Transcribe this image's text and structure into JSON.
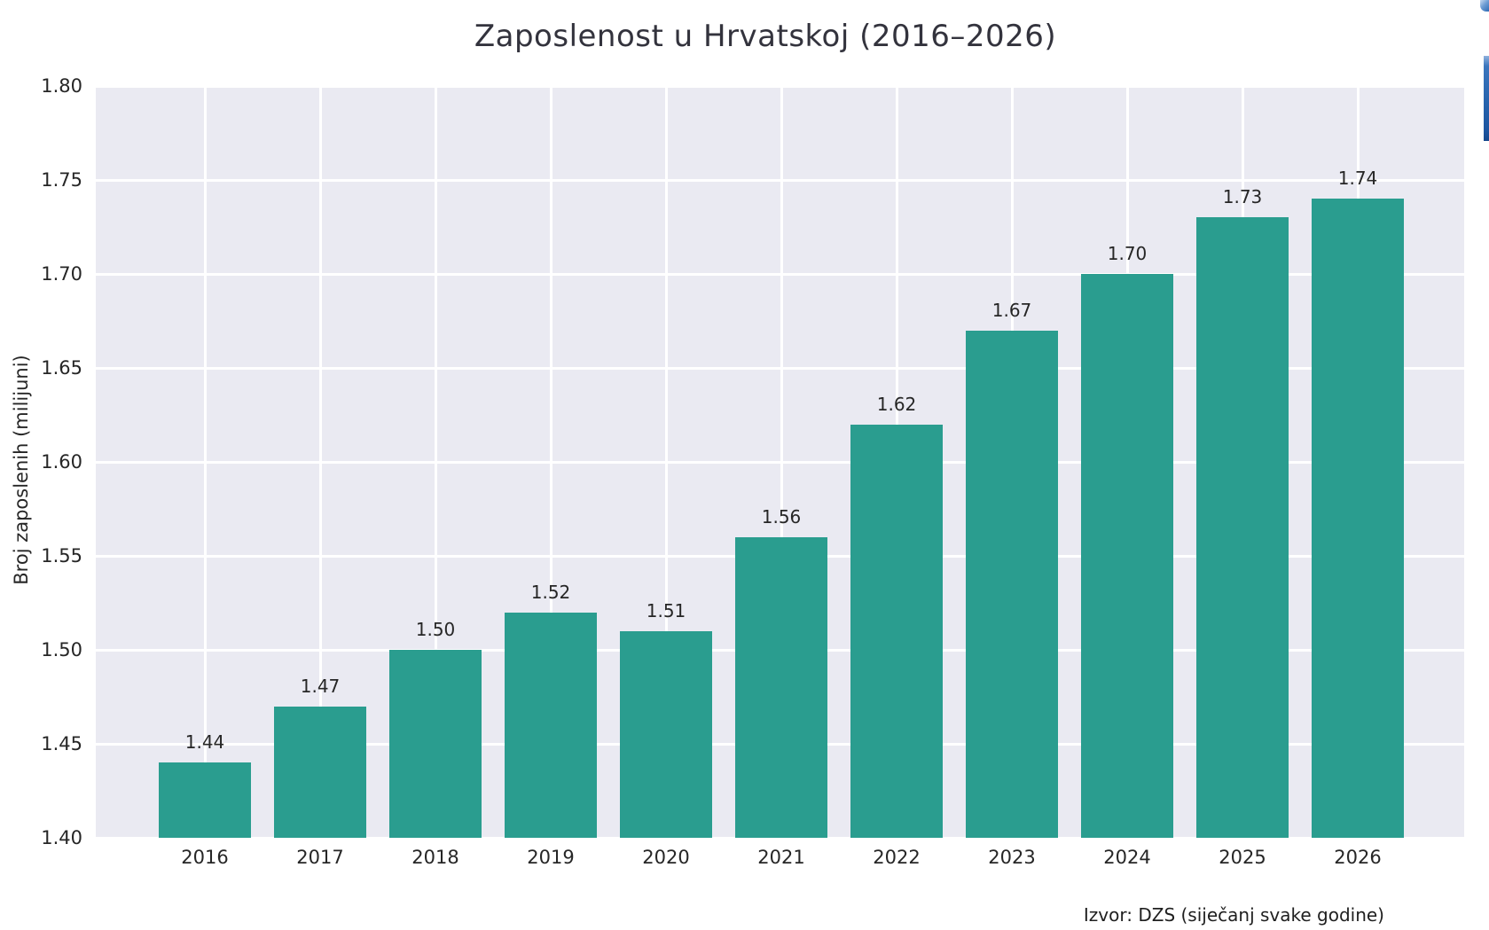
{
  "chart_data": {
    "type": "bar",
    "title": "Zaposlenost u Hrvatskoj (2016–2026)",
    "xlabel": "",
    "ylabel": "Broj zaposlenih (milijuni)",
    "categories": [
      "2016",
      "2017",
      "2018",
      "2019",
      "2020",
      "2021",
      "2022",
      "2023",
      "2024",
      "2025",
      "2026"
    ],
    "values": [
      1.44,
      1.47,
      1.5,
      1.52,
      1.51,
      1.56,
      1.62,
      1.67,
      1.7,
      1.73,
      1.74
    ],
    "bar_value_labels": [
      "1.44",
      "1.47",
      "1.50",
      "1.52",
      "1.51",
      "1.56",
      "1.62",
      "1.67",
      "1.70",
      "1.73",
      "1.74"
    ],
    "ylim": [
      1.4,
      1.8
    ],
    "ytick_labels": [
      "1.40",
      "1.45",
      "1.50",
      "1.55",
      "1.60",
      "1.65",
      "1.70",
      "1.75",
      "1.80"
    ],
    "grid": true,
    "legend_position": "none",
    "source_note": "Izvor: DZS (siječanj svake godine)",
    "colors": {
      "bar": "#2a9d8f",
      "plot_background": "#eaeaf2",
      "gridline": "#ffffff",
      "figure_background": "#ffffff",
      "text": "#262626",
      "scrollbar_blue": "#2663ad"
    }
  }
}
